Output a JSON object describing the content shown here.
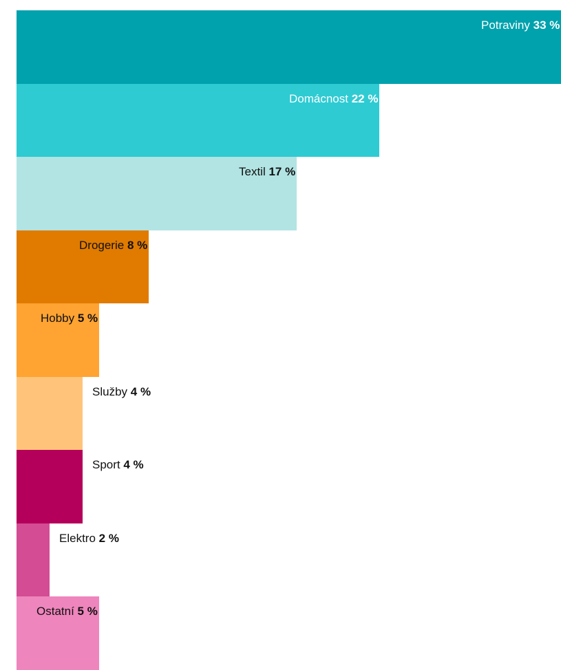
{
  "chart_data": {
    "type": "bar",
    "orientation": "horizontal",
    "title": "",
    "xlabel": "",
    "ylabel": "",
    "xlim": [
      0,
      33
    ],
    "grid": false,
    "legend": "none",
    "categories": [
      "Potraviny",
      "Domácnost",
      "Textil",
      "Drogerie",
      "Hobby",
      "Služby",
      "Sport",
      "Elektro",
      "Ostatní"
    ],
    "values": [
      33,
      22,
      17,
      8,
      5,
      4,
      4,
      2,
      5
    ],
    "value_labels": [
      "33 %",
      "22 %",
      "17 %",
      "8 %",
      "5 %",
      "4 %",
      "4 %",
      "2 %",
      "5 %"
    ],
    "colors": [
      "#00a2ad",
      "#2ecbd3",
      "#b1e4e3",
      "#e07b00",
      "#ffa332",
      "#ffc47a",
      "#b5005b",
      "#d34c94",
      "#ef85bd"
    ],
    "label_colors": [
      "#ffffff",
      "#ffffff",
      "#111111",
      "#111111",
      "#111111",
      "#111111",
      "#111111",
      "#111111",
      "#111111"
    ]
  }
}
